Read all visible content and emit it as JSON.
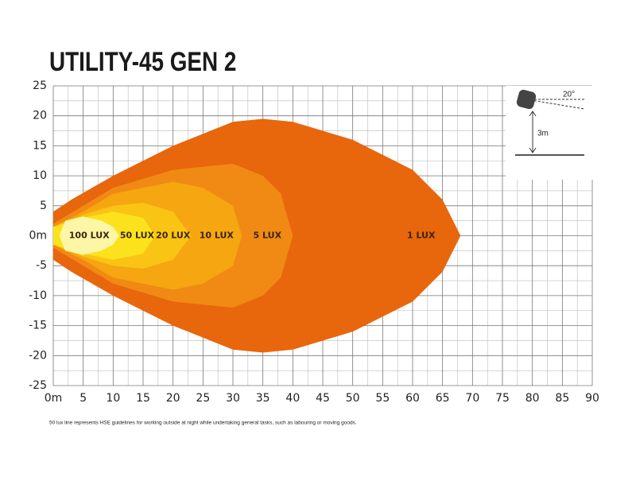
{
  "chart_data": {
    "type": "area",
    "title": "UTILITY-45 GEN 2",
    "footnote": "50 lux line represents HSE guidelines for working outside at night while undertaking general tasks, such as labouring or moving goods.",
    "xlim": [
      0,
      90
    ],
    "ylim": [
      -25,
      25
    ],
    "xticks": [
      {
        "value": 0,
        "label": "0m"
      },
      5,
      10,
      15,
      20,
      25,
      30,
      35,
      40,
      45,
      50,
      55,
      60,
      65,
      70,
      75,
      80,
      85,
      90
    ],
    "yticks": [
      25,
      20,
      15,
      10,
      5,
      {
        "value": 0,
        "label": "0m"
      },
      -5,
      -10,
      -15,
      -20,
      -25
    ],
    "grid": true,
    "series": [
      {
        "name": "1 LUX",
        "color": "#e8660c",
        "x": [
          0,
          3,
          10,
          20,
          30,
          35,
          40,
          50,
          60,
          65,
          68
        ],
        "values": [
          4,
          6,
          10,
          15,
          19,
          19.5,
          19,
          16,
          11,
          6,
          0
        ]
      },
      {
        "name": "5 LUX",
        "color": "#f08a14",
        "x": [
          0,
          5,
          10,
          20,
          30,
          35,
          38,
          40
        ],
        "values": [
          2,
          5,
          8,
          11,
          12,
          10,
          7,
          0
        ]
      },
      {
        "name": "10 LUX",
        "color": "#f5a611",
        "x": [
          0,
          5,
          10,
          20,
          25,
          30,
          31.5
        ],
        "values": [
          1.5,
          4,
          7,
          9,
          8,
          5,
          0
        ]
      },
      {
        "name": "20 LUX",
        "color": "#f9c413",
        "x": [
          0,
          5,
          10,
          15,
          20,
          23
        ],
        "values": [
          1.5,
          3.5,
          5,
          5.5,
          4,
          0
        ]
      },
      {
        "name": "50 LUX",
        "color": "#fce21c",
        "x": [
          0,
          5,
          10,
          15,
          17
        ],
        "values": [
          1.5,
          3,
          4,
          3,
          0
        ]
      },
      {
        "name": "100 LUX",
        "color": "#fdf6a6",
        "x": [
          1,
          2,
          5,
          8,
          10,
          11
        ],
        "values": [
          0,
          2.5,
          3.2,
          2.5,
          1.5,
          0
        ]
      }
    ],
    "inset": {
      "angle_label": "20°",
      "height_label": "3m"
    }
  }
}
